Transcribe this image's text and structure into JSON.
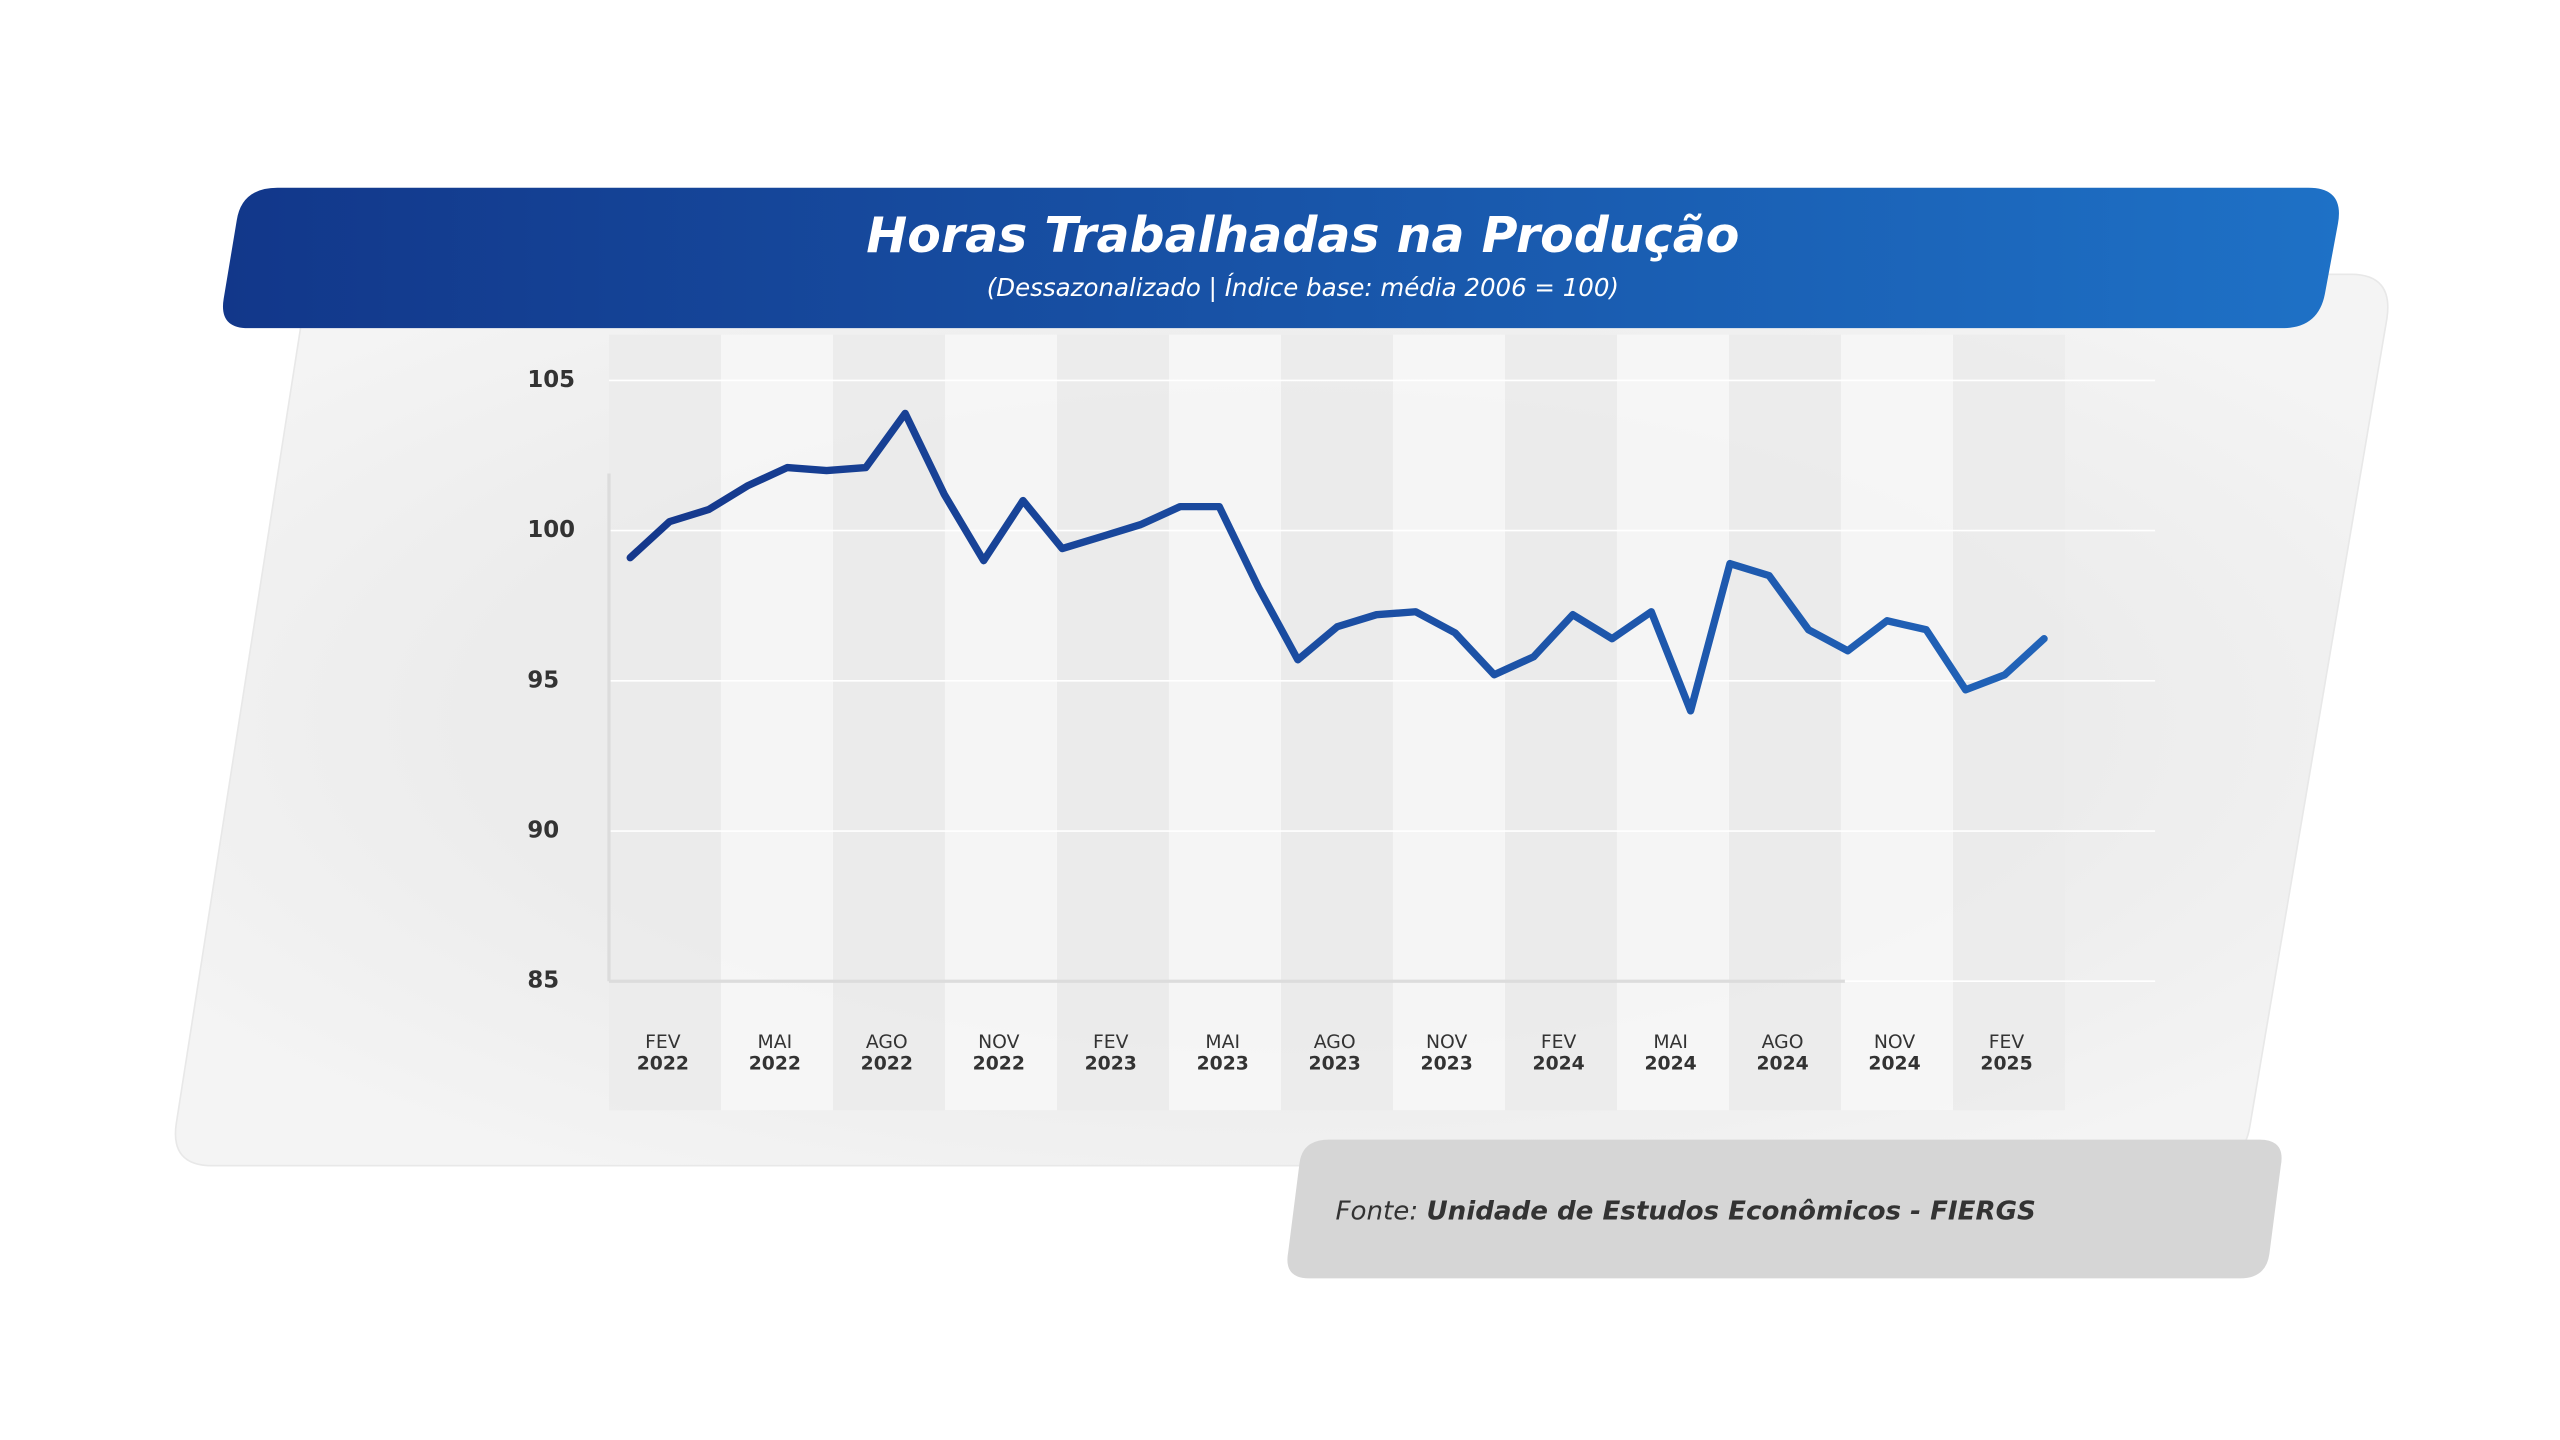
{
  "chart_data": {
    "type": "line",
    "title": "Horas Trabalhadas na Produção",
    "subtitle": "(Dessazonalizado | Índice base: média 2006 = 100)",
    "x_labels": [
      [
        "FEV",
        "2022"
      ],
      [
        "MAI",
        "2022"
      ],
      [
        "AGO",
        "2022"
      ],
      [
        "NOV",
        "2022"
      ],
      [
        "FEV",
        "2023"
      ],
      [
        "MAI",
        "2023"
      ],
      [
        "AGO",
        "2023"
      ],
      [
        "NOV",
        "2023"
      ],
      [
        "FEV",
        "2024"
      ],
      [
        "MAI",
        "2024"
      ],
      [
        "AGO",
        "2024"
      ],
      [
        "NOV",
        "2024"
      ],
      [
        "FEV",
        "2025"
      ]
    ],
    "values": [
      99.1,
      100.3,
      100.7,
      101.5,
      102.1,
      102.0,
      102.1,
      103.9,
      101.2,
      99.0,
      101.0,
      99.4,
      99.8,
      100.2,
      100.8,
      100.8,
      98.1,
      95.7,
      96.8,
      97.2,
      97.3,
      96.6,
      95.2,
      95.8,
      97.2,
      96.4,
      97.3,
      94.0,
      98.9,
      98.5,
      96.7,
      96.0,
      97.0,
      96.7,
      94.7,
      95.2,
      96.4
    ],
    "color": "#1a4a9c",
    "ylim": [
      85,
      105
    ],
    "yticks": [
      85,
      90,
      95,
      100,
      105
    ],
    "grid": true,
    "source_label": "Fonte:",
    "source": "Unidade de Estudos Econômicos - FIERGS"
  }
}
